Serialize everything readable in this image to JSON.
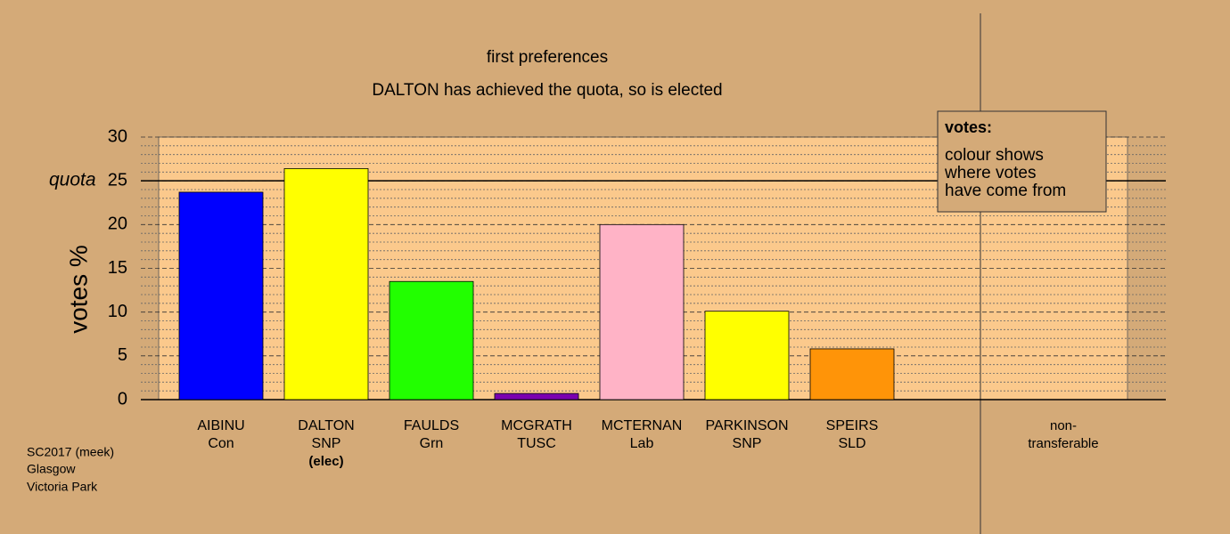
{
  "chart_data": {
    "type": "bar",
    "title": "first preferences",
    "subtitle": "DALTON has achieved the quota, so is elected",
    "y_label": "votes %",
    "categories": [
      [
        "AIBINU",
        "Con"
      ],
      [
        "DALTON",
        "SNP",
        "(elec)"
      ],
      [
        "FAULDS",
        "Grn"
      ],
      [
        "MCGRATH",
        "TUSC"
      ],
      [
        "MCTERNAN",
        "Lab"
      ],
      [
        "PARKINSON",
        "SNP"
      ],
      [
        "SPEIRS",
        "SLD"
      ],
      [
        "non-",
        "transferable"
      ]
    ],
    "values": [
      23.7,
      26.4,
      13.5,
      0.7,
      20.0,
      10.1,
      5.8,
      0
    ],
    "colors": [
      "#0000ff",
      "#ffff00",
      "#22ff00",
      "#7a00b0",
      "#ffb3c6",
      "#ffff00",
      "#ff9408",
      "#888888"
    ],
    "ylim": [
      0,
      30
    ],
    "yticks": [
      0,
      5,
      10,
      15,
      20,
      25,
      30
    ],
    "minor_yticks": [
      1,
      2,
      3,
      4,
      6,
      7,
      8,
      9,
      11,
      12,
      13,
      14,
      16,
      17,
      18,
      19,
      21,
      22,
      23,
      24,
      26,
      27,
      28,
      29
    ],
    "grid": true,
    "quota": {
      "value": 25,
      "label": "quota"
    },
    "legend": {
      "title": "votes:",
      "lines": [
        "colour shows",
        "where votes",
        "have come from"
      ]
    },
    "footer": [
      "SC2017 (meek)",
      "Glasgow",
      "Victoria Park"
    ]
  }
}
